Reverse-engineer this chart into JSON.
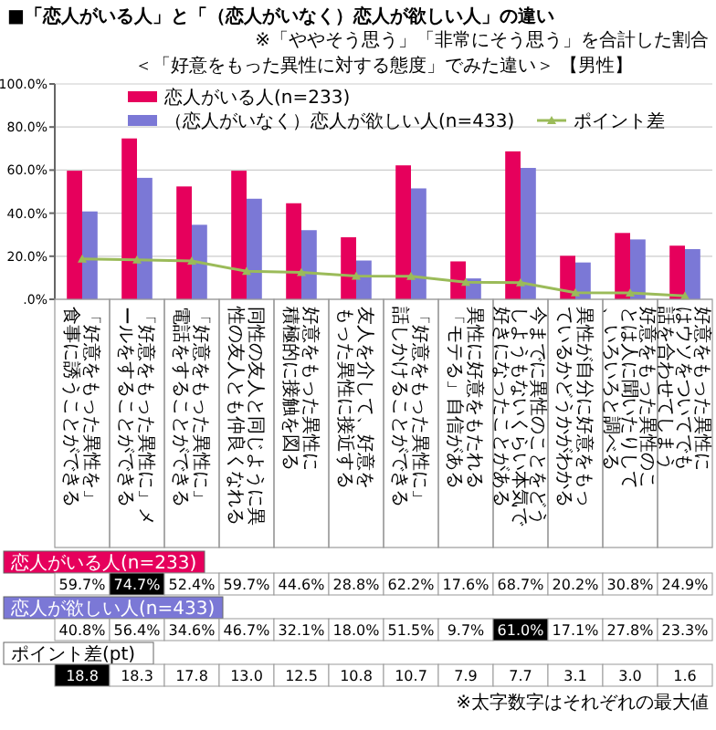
{
  "chart_data": {
    "type": "bar",
    "title": "■「恋人がいる人」と「（恋人がいなく）恋人が欲しい人」の違い",
    "subtitle": "＜「好意をもった異性に対する態度」でみた違い＞ 【男性】",
    "annotations": [
      "※「ややそう思う」「非常にそう思う」を合計した割合",
      "恋人がいる人(n=233)",
      "恋人が欲しい人(n=433)",
      "ポイント差(pt)",
      "※太字数字はそれぞれの最大値"
    ],
    "categories": [
      "「好意をもった異性を」食事に誘うことができる",
      "「好意をもった異性に」メールをすることができる",
      "「好意をもった異性に」電話をすることができる",
      "同性の友人と同じように異性の友人とも仲良くなれる",
      "好意をもった異性に積極的に接触を図る",
      "友人を介して、好意をもった異性に接近する",
      "「好意をもった異性に」話しかけることができる",
      "異性に好意をもたれる「モテる」自信がある",
      "今までに異性のことをどうしようもないくらい本気で好きになったことがある",
      "異性が自分に好意をもっているかどうかがわかる",
      "好意をもった異性のことは人に聞いたりして、いろいろと調べる",
      "好意をもった異性にはウソをついてでも話を合わせてしまう"
    ],
    "series": [
      {
        "name": "恋人がいる人(n=233)",
        "color": "#e6005c",
        "values": [
          59.7,
          74.7,
          52.4,
          59.7,
          44.6,
          28.8,
          62.2,
          17.6,
          68.7,
          20.2,
          30.8,
          24.9
        ],
        "value_labels": [
          "59.7%",
          "74.7%",
          "52.4%",
          "59.7%",
          "44.6%",
          "28.8%",
          "62.2%",
          "17.6%",
          "68.7%",
          "20.2%",
          "30.8%",
          "24.9%"
        ]
      },
      {
        "name": "（恋人がいなく）恋人が欲しい人(n=433)",
        "color": "#7b78d6",
        "values": [
          40.8,
          56.4,
          34.6,
          46.7,
          32.1,
          18.0,
          51.5,
          9.7,
          61.0,
          17.1,
          27.8,
          23.3
        ],
        "value_labels": [
          "40.8%",
          "56.4%",
          "34.6%",
          "46.7%",
          "32.1%",
          "18.0%",
          "51.5%",
          "9.7%",
          "61.0%",
          "17.1%",
          "27.8%",
          "23.3%"
        ]
      },
      {
        "name": "ポイント差",
        "type": "line",
        "color": "#9bbb59",
        "values": [
          18.8,
          18.3,
          17.8,
          13.0,
          12.5,
          10.8,
          10.7,
          7.9,
          7.7,
          3.1,
          3.0,
          1.6
        ],
        "value_labels": [
          "18.8",
          "18.3",
          "17.8",
          "13.0",
          "12.5",
          "10.8",
          "10.7",
          "7.9",
          "7.7",
          "3.1",
          "3.0",
          "1.6"
        ]
      }
    ],
    "ylim": [
      0,
      100
    ],
    "yticks": [
      {
        "value": 0,
        "label": ".0%"
      },
      {
        "value": 20,
        "label": "20.0%"
      },
      {
        "value": 40,
        "label": "40.0%"
      },
      {
        "value": 60,
        "label": "60.0%"
      },
      {
        "value": 80,
        "label": "80.0%"
      },
      {
        "value": 100,
        "label": "100.0%"
      }
    ],
    "grid": "y",
    "legend": "top",
    "marker": "triangle",
    "line_style": "solid"
  }
}
